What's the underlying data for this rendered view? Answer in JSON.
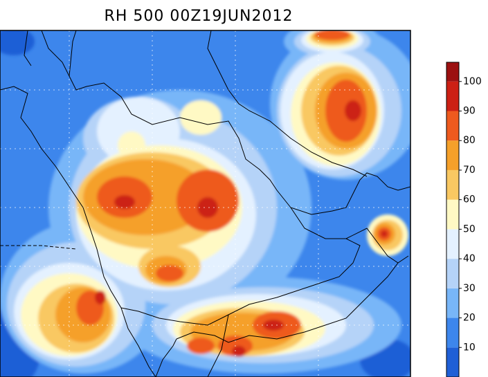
{
  "title": "RH 500 00Z19JUN2012",
  "colorbar": {
    "colors": [
      "#1f5fd6",
      "#3d86ec",
      "#78b6f8",
      "#b5d3f8",
      "#e4f1ff",
      "#fff9c4",
      "#f9c862",
      "#f5a02a",
      "#ee5a1e",
      "#cc2014",
      "#9c1010"
    ],
    "ticks": [
      10,
      20,
      30,
      40,
      50,
      60,
      70,
      80,
      90,
      100
    ]
  }
}
